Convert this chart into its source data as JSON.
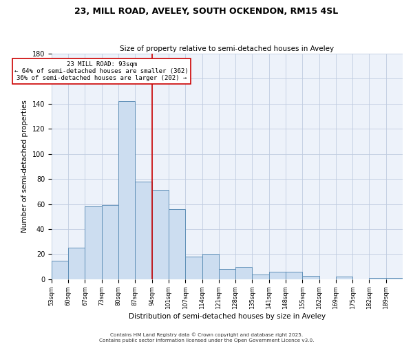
{
  "title": "23, MILL ROAD, AVELEY, SOUTH OCKENDON, RM15 4SL",
  "subtitle": "Size of property relative to semi-detached houses in Aveley",
  "xlabel": "Distribution of semi-detached houses by size in Aveley",
  "ylabel": "Number of semi-detached properties",
  "bar_color": "#ccddf0",
  "bar_edge_color": "#6090b8",
  "bg_color": "#edf2fa",
  "grid_color": "#c0cce0",
  "annotation_line_color": "#cc0000",
  "annotation_box_edge": "#cc0000",
  "annotation_text_line1": "23 MILL ROAD: 93sqm",
  "annotation_text_line2": "← 64% of semi-detached houses are smaller (362)",
  "annotation_text_line3": "36% of semi-detached houses are larger (202) →",
  "categories": [
    "53sqm",
    "60sqm",
    "67sqm",
    "73sqm",
    "80sqm",
    "87sqm",
    "94sqm",
    "101sqm",
    "107sqm",
    "114sqm",
    "121sqm",
    "128sqm",
    "135sqm",
    "141sqm",
    "148sqm",
    "155sqm",
    "162sqm",
    "169sqm",
    "175sqm",
    "182sqm",
    "189sqm"
  ],
  "bin_edges": [
    0,
    1,
    2,
    3,
    4,
    5,
    6,
    7,
    8,
    9,
    10,
    11,
    12,
    13,
    14,
    15,
    16,
    17,
    18,
    19,
    20,
    21
  ],
  "values": [
    15,
    25,
    58,
    59,
    142,
    78,
    71,
    56,
    18,
    20,
    8,
    10,
    4,
    6,
    6,
    3,
    0,
    2,
    0,
    1,
    1
  ],
  "vline_index": 6,
  "ylim": [
    0,
    180
  ],
  "yticks": [
    0,
    20,
    40,
    60,
    80,
    100,
    120,
    140,
    160,
    180
  ],
  "footnote1": "Contains HM Land Registry data © Crown copyright and database right 2025.",
  "footnote2": "Contains public sector information licensed under the Open Government Licence v3.0."
}
